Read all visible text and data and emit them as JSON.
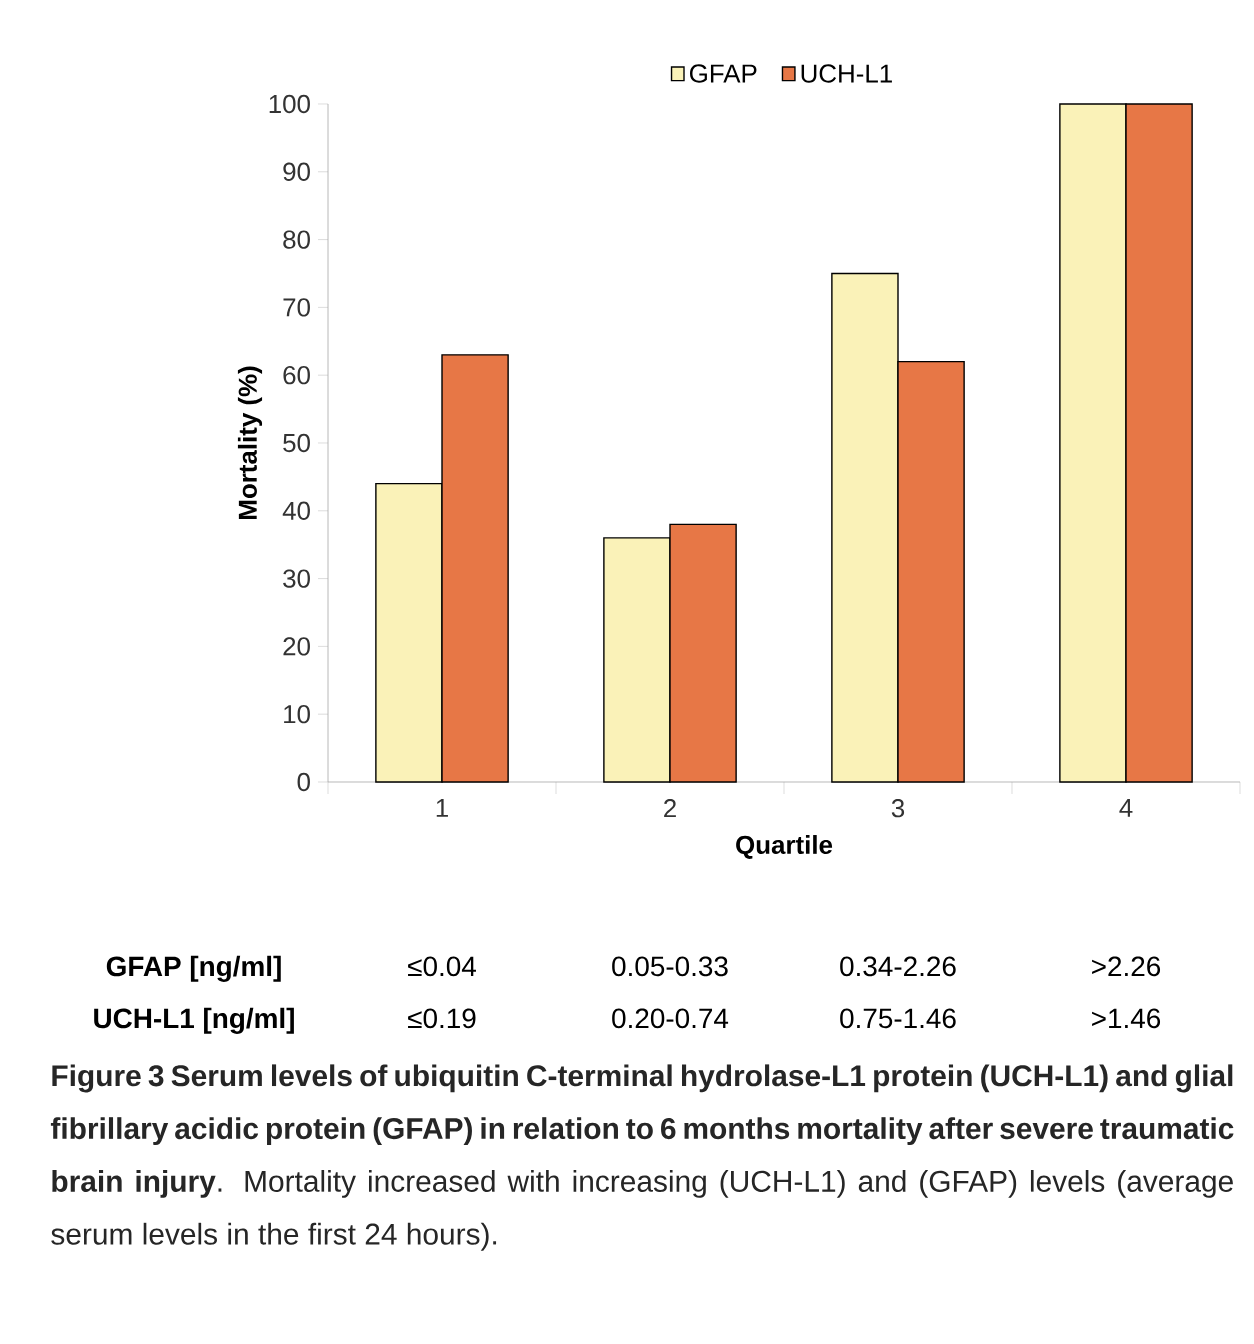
{
  "chart_data": {
    "type": "bar",
    "categories": [
      "1",
      "2",
      "3",
      "4"
    ],
    "xlabel": "Quartile",
    "ylabel": "Mortality (%)",
    "series": [
      {
        "name": "GFAP",
        "color": "#faf2b8",
        "values": [
          44,
          36,
          75,
          100
        ]
      },
      {
        "name": "UCH-L1",
        "color": "#e77746",
        "values": [
          63,
          38,
          62,
          100
        ]
      }
    ],
    "ylim": [
      0,
      100
    ],
    "yticks": [
      0,
      10,
      20,
      30,
      40,
      50,
      60,
      70,
      80,
      90,
      100
    ],
    "legend": "top",
    "grid": false,
    "annotations": [
      "GFAP [ng/ml]",
      "≤0.04",
      "0.05-0.33",
      "0.34-2.26",
      ">2.26",
      "UCH-L1 [ng/ml]",
      "≤0.19",
      "0.20-0.74",
      "0.75-1.46",
      ">1.46",
      "**Figure 3 Serum levels of ubiquitin C-terminal hydrolase-L1 protein (UCH-L1) and glial fibrillary acidic protein (GFAP) in relation to 6 months mortality after severe traumatic brain injury**. Mortality increased with increasing (UCH-L1) and (GFAP) levels (average serum levels in the first 24 hours)."
    ]
  }
}
